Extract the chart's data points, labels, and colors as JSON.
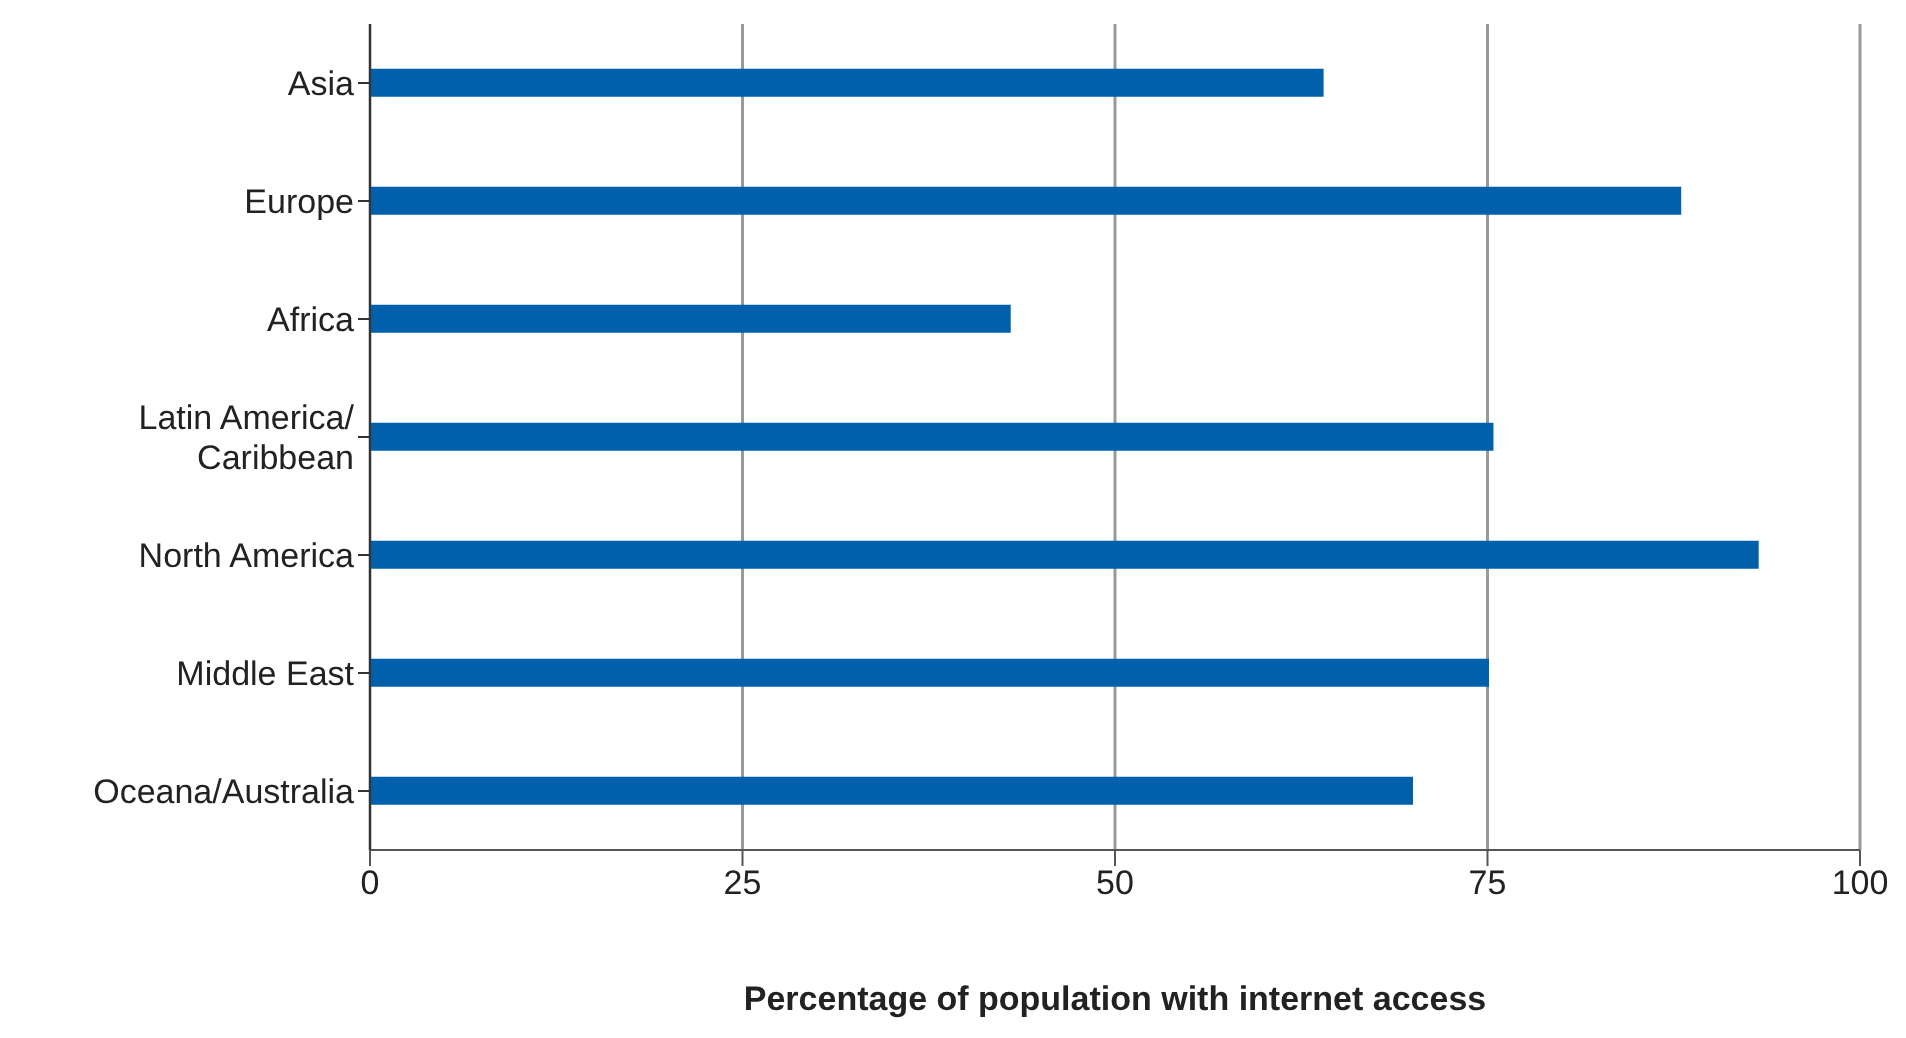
{
  "chart_data": {
    "type": "bar",
    "orientation": "horizontal",
    "xlabel": "Percentage of population with internet access",
    "categories": [
      "Asia",
      "Europe",
      "Africa",
      "Latin America/\nCaribbean",
      "North America",
      "Middle East",
      "Oceana/Australia"
    ],
    "values": [
      64,
      88,
      43,
      75.4,
      93.2,
      75.1,
      70
    ],
    "color": "#0060ac",
    "xlim": [
      0,
      100
    ],
    "xticks": [
      0,
      25,
      50,
      75,
      100
    ],
    "grid": "x"
  }
}
